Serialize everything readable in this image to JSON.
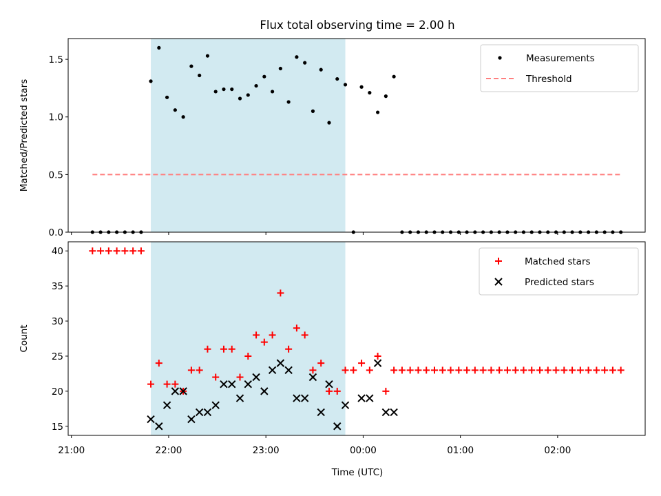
{
  "chart_data": {
    "title": "Flux total observing time = 2.00 h",
    "xlabel": "Time (UTC)",
    "x_ticks": [
      "21:00",
      "22:00",
      "23:00",
      "00:00",
      "01:00",
      "02:00"
    ],
    "shaded_interval": {
      "start": "21:49",
      "end": "23:49",
      "color": "#add8e6"
    },
    "panels": [
      {
        "type": "scatter",
        "ylabel": "Matched/Predicted stars",
        "ylim": [
          0,
          1.68
        ],
        "y_ticks": [
          "0.0",
          "0.5",
          "1.0",
          "1.5"
        ],
        "legend_position": "top-right",
        "series": [
          {
            "name": "Measurements",
            "marker": "dot",
            "color": "#000000",
            "x": [
              "21:13",
              "21:18",
              "21:23",
              "21:28",
              "21:33",
              "21:38",
              "21:43",
              "21:49",
              "21:54",
              "21:59",
              "22:04",
              "22:09",
              "22:14",
              "22:19",
              "22:24",
              "22:29",
              "22:34",
              "22:39",
              "22:44",
              "22:49",
              "22:54",
              "22:59",
              "23:04",
              "23:09",
              "23:14",
              "23:19",
              "23:24",
              "23:29",
              "23:34",
              "23:39",
              "23:44",
              "23:49",
              "23:54",
              "23:59",
              "00:04",
              "00:09",
              "00:14",
              "00:19",
              "00:24",
              "00:29",
              "00:34",
              "00:39",
              "00:44",
              "00:49",
              "00:54",
              "00:59",
              "01:04",
              "01:09",
              "01:14",
              "01:19",
              "01:24",
              "01:29",
              "01:34",
              "01:39",
              "01:44",
              "01:49",
              "01:54",
              "01:59",
              "02:04",
              "02:09",
              "02:14",
              "02:19",
              "02:24",
              "02:29",
              "02:34",
              "02:39"
            ],
            "y": [
              0,
              0,
              0,
              0,
              0,
              0,
              0,
              1.31,
              1.6,
              1.17,
              1.06,
              1.0,
              1.44,
              1.36,
              1.53,
              1.22,
              1.24,
              1.24,
              1.16,
              1.19,
              1.27,
              1.35,
              1.22,
              1.42,
              1.13,
              1.52,
              1.47,
              1.05,
              1.41,
              0.95,
              1.33,
              1.28,
              0,
              1.26,
              1.21,
              1.04,
              1.18,
              1.35,
              0,
              0,
              0,
              0,
              0,
              0,
              0,
              0,
              0,
              0,
              0,
              0,
              0,
              0,
              0,
              0,
              0,
              0,
              0,
              0,
              0,
              0,
              0,
              0,
              0,
              0,
              0,
              0
            ]
          },
          {
            "name": "Threshold",
            "marker": "dashed-line",
            "color": "#ff7f7f",
            "x": [
              "21:13",
              "02:39"
            ],
            "y": [
              0.5,
              0.5
            ]
          }
        ]
      },
      {
        "type": "scatter",
        "ylabel": "Count",
        "ylim": [
          13.7,
          41.3
        ],
        "y_ticks": [
          "15",
          "20",
          "25",
          "30",
          "35",
          "40"
        ],
        "legend_position": "top-right",
        "series": [
          {
            "name": "Matched stars",
            "marker": "plus",
            "color": "#ff0000",
            "x": [
              "21:13",
              "21:18",
              "21:23",
              "21:28",
              "21:33",
              "21:38",
              "21:43",
              "21:49",
              "21:54",
              "21:59",
              "22:04",
              "22:09",
              "22:14",
              "22:19",
              "22:24",
              "22:29",
              "22:34",
              "22:39",
              "22:44",
              "22:49",
              "22:54",
              "22:59",
              "23:04",
              "23:09",
              "23:14",
              "23:19",
              "23:24",
              "23:29",
              "23:34",
              "23:39",
              "23:44",
              "23:49",
              "23:54",
              "23:59",
              "00:04",
              "00:09",
              "00:14",
              "00:19",
              "00:24",
              "00:29",
              "00:34",
              "00:39",
              "00:44",
              "00:49",
              "00:54",
              "00:59",
              "01:04",
              "01:09",
              "01:14",
              "01:19",
              "01:24",
              "01:29",
              "01:34",
              "01:39",
              "01:44",
              "01:49",
              "01:54",
              "01:59",
              "02:04",
              "02:09",
              "02:14",
              "02:19",
              "02:24",
              "02:29",
              "02:34",
              "02:39"
            ],
            "y": [
              40,
              40,
              40,
              40,
              40,
              40,
              40,
              21,
              24,
              21,
              21,
              20,
              23,
              23,
              26,
              22,
              26,
              26,
              22,
              25,
              28,
              27,
              28,
              34,
              26,
              29,
              28,
              23,
              24,
              20,
              20,
              23,
              23,
              24,
              23,
              25,
              20,
              23,
              23,
              23,
              23,
              23,
              23,
              23,
              23,
              23,
              23,
              23,
              23,
              23,
              23,
              23,
              23,
              23,
              23,
              23,
              23,
              23,
              23,
              23,
              23,
              23,
              23,
              23,
              23,
              23
            ]
          },
          {
            "name": "Predicted stars",
            "marker": "x",
            "color": "#000000",
            "x": [
              "21:49",
              "21:54",
              "21:59",
              "22:04",
              "22:09",
              "22:14",
              "22:19",
              "22:24",
              "22:29",
              "22:34",
              "22:39",
              "22:44",
              "22:49",
              "22:54",
              "22:59",
              "23:04",
              "23:09",
              "23:14",
              "23:19",
              "23:24",
              "23:29",
              "23:34",
              "23:39",
              "23:44",
              "23:49",
              "23:59",
              "00:04",
              "00:09",
              "00:14",
              "00:19"
            ],
            "y": [
              16,
              15,
              18,
              20,
              20,
              16,
              17,
              17,
              18,
              21,
              21,
              19,
              21,
              22,
              20,
              23,
              24,
              23,
              19,
              19,
              22,
              17,
              21,
              15,
              18,
              19,
              19,
              24,
              17,
              17
            ]
          }
        ]
      }
    ]
  }
}
